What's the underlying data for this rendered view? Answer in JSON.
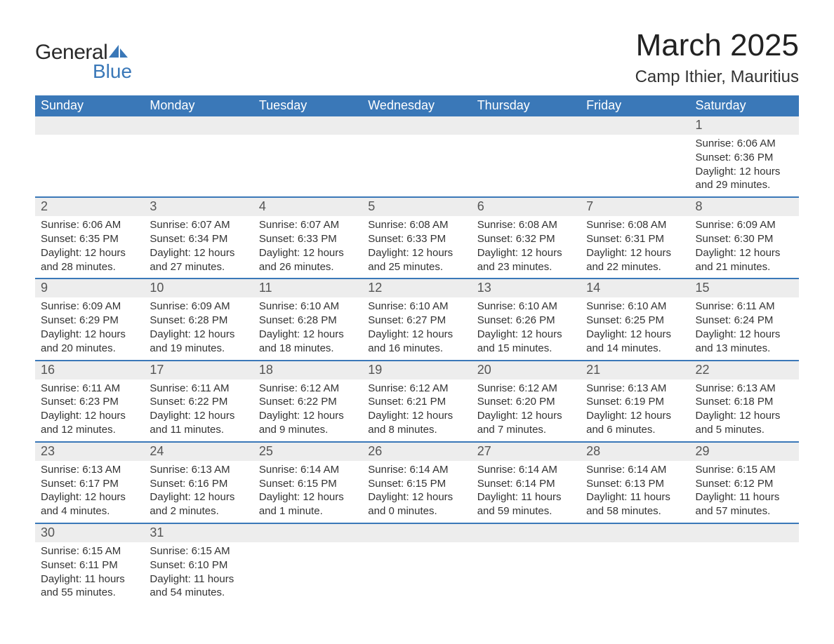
{
  "logo": {
    "text_general": "General",
    "text_blue": "Blue",
    "shape_color": "#3a78b8"
  },
  "title": {
    "month": "March 2025",
    "location": "Camp Ithier, Mauritius",
    "month_fontsize": 44,
    "location_fontsize": 24,
    "text_color": "#222222"
  },
  "calendar": {
    "header_bg": "#3a78b8",
    "header_text_color": "#ffffff",
    "row_divider_color": "#3a78b8",
    "daynum_bg": "#ededed",
    "daynum_color": "#555555",
    "body_text_color": "#333333",
    "weekdays": [
      "Sunday",
      "Monday",
      "Tuesday",
      "Wednesday",
      "Thursday",
      "Friday",
      "Saturday"
    ],
    "weeks": [
      [
        {
          "n": "",
          "sunrise": "",
          "sunset": "",
          "daylight": ""
        },
        {
          "n": "",
          "sunrise": "",
          "sunset": "",
          "daylight": ""
        },
        {
          "n": "",
          "sunrise": "",
          "sunset": "",
          "daylight": ""
        },
        {
          "n": "",
          "sunrise": "",
          "sunset": "",
          "daylight": ""
        },
        {
          "n": "",
          "sunrise": "",
          "sunset": "",
          "daylight": ""
        },
        {
          "n": "",
          "sunrise": "",
          "sunset": "",
          "daylight": ""
        },
        {
          "n": "1",
          "sunrise": "Sunrise: 6:06 AM",
          "sunset": "Sunset: 6:36 PM",
          "daylight": "Daylight: 12 hours and 29 minutes."
        }
      ],
      [
        {
          "n": "2",
          "sunrise": "Sunrise: 6:06 AM",
          "sunset": "Sunset: 6:35 PM",
          "daylight": "Daylight: 12 hours and 28 minutes."
        },
        {
          "n": "3",
          "sunrise": "Sunrise: 6:07 AM",
          "sunset": "Sunset: 6:34 PM",
          "daylight": "Daylight: 12 hours and 27 minutes."
        },
        {
          "n": "4",
          "sunrise": "Sunrise: 6:07 AM",
          "sunset": "Sunset: 6:33 PM",
          "daylight": "Daylight: 12 hours and 26 minutes."
        },
        {
          "n": "5",
          "sunrise": "Sunrise: 6:08 AM",
          "sunset": "Sunset: 6:33 PM",
          "daylight": "Daylight: 12 hours and 25 minutes."
        },
        {
          "n": "6",
          "sunrise": "Sunrise: 6:08 AM",
          "sunset": "Sunset: 6:32 PM",
          "daylight": "Daylight: 12 hours and 23 minutes."
        },
        {
          "n": "7",
          "sunrise": "Sunrise: 6:08 AM",
          "sunset": "Sunset: 6:31 PM",
          "daylight": "Daylight: 12 hours and 22 minutes."
        },
        {
          "n": "8",
          "sunrise": "Sunrise: 6:09 AM",
          "sunset": "Sunset: 6:30 PM",
          "daylight": "Daylight: 12 hours and 21 minutes."
        }
      ],
      [
        {
          "n": "9",
          "sunrise": "Sunrise: 6:09 AM",
          "sunset": "Sunset: 6:29 PM",
          "daylight": "Daylight: 12 hours and 20 minutes."
        },
        {
          "n": "10",
          "sunrise": "Sunrise: 6:09 AM",
          "sunset": "Sunset: 6:28 PM",
          "daylight": "Daylight: 12 hours and 19 minutes."
        },
        {
          "n": "11",
          "sunrise": "Sunrise: 6:10 AM",
          "sunset": "Sunset: 6:28 PM",
          "daylight": "Daylight: 12 hours and 18 minutes."
        },
        {
          "n": "12",
          "sunrise": "Sunrise: 6:10 AM",
          "sunset": "Sunset: 6:27 PM",
          "daylight": "Daylight: 12 hours and 16 minutes."
        },
        {
          "n": "13",
          "sunrise": "Sunrise: 6:10 AM",
          "sunset": "Sunset: 6:26 PM",
          "daylight": "Daylight: 12 hours and 15 minutes."
        },
        {
          "n": "14",
          "sunrise": "Sunrise: 6:10 AM",
          "sunset": "Sunset: 6:25 PM",
          "daylight": "Daylight: 12 hours and 14 minutes."
        },
        {
          "n": "15",
          "sunrise": "Sunrise: 6:11 AM",
          "sunset": "Sunset: 6:24 PM",
          "daylight": "Daylight: 12 hours and 13 minutes."
        }
      ],
      [
        {
          "n": "16",
          "sunrise": "Sunrise: 6:11 AM",
          "sunset": "Sunset: 6:23 PM",
          "daylight": "Daylight: 12 hours and 12 minutes."
        },
        {
          "n": "17",
          "sunrise": "Sunrise: 6:11 AM",
          "sunset": "Sunset: 6:22 PM",
          "daylight": "Daylight: 12 hours and 11 minutes."
        },
        {
          "n": "18",
          "sunrise": "Sunrise: 6:12 AM",
          "sunset": "Sunset: 6:22 PM",
          "daylight": "Daylight: 12 hours and 9 minutes."
        },
        {
          "n": "19",
          "sunrise": "Sunrise: 6:12 AM",
          "sunset": "Sunset: 6:21 PM",
          "daylight": "Daylight: 12 hours and 8 minutes."
        },
        {
          "n": "20",
          "sunrise": "Sunrise: 6:12 AM",
          "sunset": "Sunset: 6:20 PM",
          "daylight": "Daylight: 12 hours and 7 minutes."
        },
        {
          "n": "21",
          "sunrise": "Sunrise: 6:13 AM",
          "sunset": "Sunset: 6:19 PM",
          "daylight": "Daylight: 12 hours and 6 minutes."
        },
        {
          "n": "22",
          "sunrise": "Sunrise: 6:13 AM",
          "sunset": "Sunset: 6:18 PM",
          "daylight": "Daylight: 12 hours and 5 minutes."
        }
      ],
      [
        {
          "n": "23",
          "sunrise": "Sunrise: 6:13 AM",
          "sunset": "Sunset: 6:17 PM",
          "daylight": "Daylight: 12 hours and 4 minutes."
        },
        {
          "n": "24",
          "sunrise": "Sunrise: 6:13 AM",
          "sunset": "Sunset: 6:16 PM",
          "daylight": "Daylight: 12 hours and 2 minutes."
        },
        {
          "n": "25",
          "sunrise": "Sunrise: 6:14 AM",
          "sunset": "Sunset: 6:15 PM",
          "daylight": "Daylight: 12 hours and 1 minute."
        },
        {
          "n": "26",
          "sunrise": "Sunrise: 6:14 AM",
          "sunset": "Sunset: 6:15 PM",
          "daylight": "Daylight: 12 hours and 0 minutes."
        },
        {
          "n": "27",
          "sunrise": "Sunrise: 6:14 AM",
          "sunset": "Sunset: 6:14 PM",
          "daylight": "Daylight: 11 hours and 59 minutes."
        },
        {
          "n": "28",
          "sunrise": "Sunrise: 6:14 AM",
          "sunset": "Sunset: 6:13 PM",
          "daylight": "Daylight: 11 hours and 58 minutes."
        },
        {
          "n": "29",
          "sunrise": "Sunrise: 6:15 AM",
          "sunset": "Sunset: 6:12 PM",
          "daylight": "Daylight: 11 hours and 57 minutes."
        }
      ],
      [
        {
          "n": "30",
          "sunrise": "Sunrise: 6:15 AM",
          "sunset": "Sunset: 6:11 PM",
          "daylight": "Daylight: 11 hours and 55 minutes."
        },
        {
          "n": "31",
          "sunrise": "Sunrise: 6:15 AM",
          "sunset": "Sunset: 6:10 PM",
          "daylight": "Daylight: 11 hours and 54 minutes."
        },
        {
          "n": "",
          "sunrise": "",
          "sunset": "",
          "daylight": ""
        },
        {
          "n": "",
          "sunrise": "",
          "sunset": "",
          "daylight": ""
        },
        {
          "n": "",
          "sunrise": "",
          "sunset": "",
          "daylight": ""
        },
        {
          "n": "",
          "sunrise": "",
          "sunset": "",
          "daylight": ""
        },
        {
          "n": "",
          "sunrise": "",
          "sunset": "",
          "daylight": ""
        }
      ]
    ]
  }
}
